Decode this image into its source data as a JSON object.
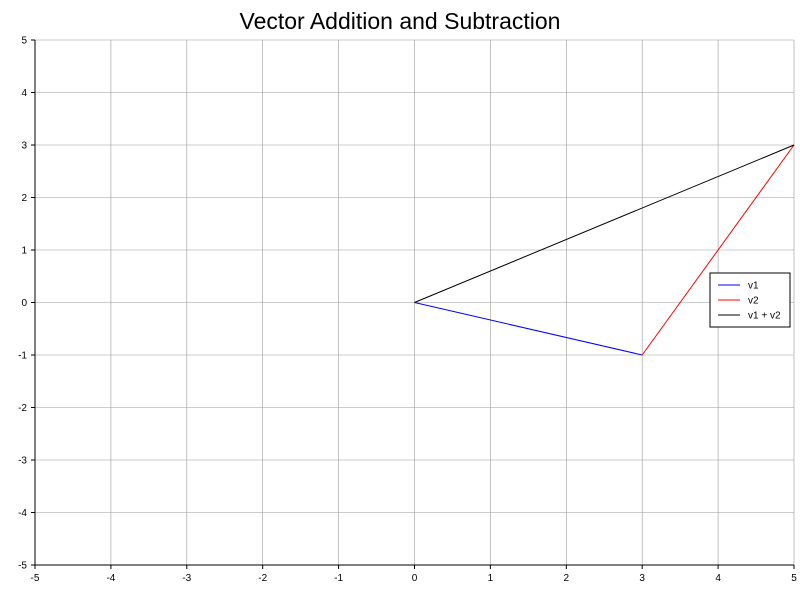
{
  "chart_data": {
    "type": "line",
    "title": "Vector Addition and Subtraction",
    "xlabel": "",
    "ylabel": "",
    "xlim": [
      -5,
      5
    ],
    "ylim": [
      -5,
      5
    ],
    "xticks": [
      -5,
      -4,
      -3,
      -2,
      -1,
      0,
      1,
      2,
      3,
      4,
      5
    ],
    "yticks": [
      -5,
      -4,
      -3,
      -2,
      -1,
      0,
      1,
      2,
      3,
      4,
      5
    ],
    "grid": true,
    "legend_position": "right",
    "series": [
      {
        "name": "v1",
        "color": "#0000ff",
        "points": [
          [
            0,
            0
          ],
          [
            3,
            -1
          ]
        ]
      },
      {
        "name": "v2",
        "color": "#ff0000",
        "points": [
          [
            3,
            -1
          ],
          [
            5,
            3
          ]
        ]
      },
      {
        "name": "v1 + v2",
        "color": "#000000",
        "points": [
          [
            0,
            0
          ],
          [
            5,
            3
          ]
        ]
      }
    ]
  }
}
